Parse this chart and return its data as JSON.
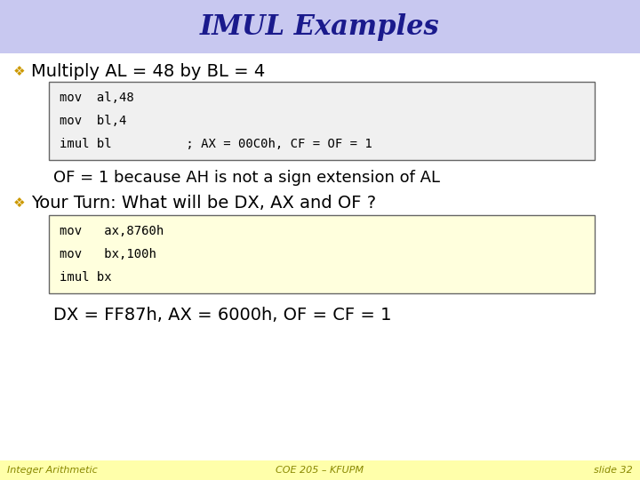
{
  "title": "IMUL Examples",
  "title_color": "#1a1a8c",
  "title_bg": "#c8c8f0",
  "title_fontsize": 22,
  "body_bg": "#ffffff",
  "bullet1": "Multiply AL = 48 by BL = 4",
  "bullet_color": "#000000",
  "bullet_fontsize": 14,
  "code1_lines": [
    "mov  al,48",
    "mov  bl,4",
    "imul bl          ; AX = 00C0h, CF = OF = 1"
  ],
  "code1_box_color": "#f0f0f0",
  "code1_border": "#666666",
  "note1": "OF = 1 because AH is not a sign extension of AL",
  "note1_color": "#000000",
  "note1_fontsize": 13,
  "bullet2": "Your Turn: What will be DX, AX and OF ?",
  "code2_lines": [
    "mov   ax,8760h",
    "mov   bx,100h",
    "imul bx"
  ],
  "code2_box_color": "#ffffdd",
  "code2_border": "#666666",
  "result_line": "DX = FF87h, AX = 6000h, OF = CF = 1",
  "result_color": "#000000",
  "result_fontsize": 14,
  "footer_bg": "#ffffaa",
  "footer_left": "Integer Arithmetic",
  "footer_center": "COE 205 – KFUPM",
  "footer_right": "slide 32",
  "footer_color": "#888800",
  "footer_fontsize": 8,
  "diamond_char": "❖",
  "diamond_color": "#cc9900",
  "diamond_fontsize": 11,
  "code_fontsize": 10
}
